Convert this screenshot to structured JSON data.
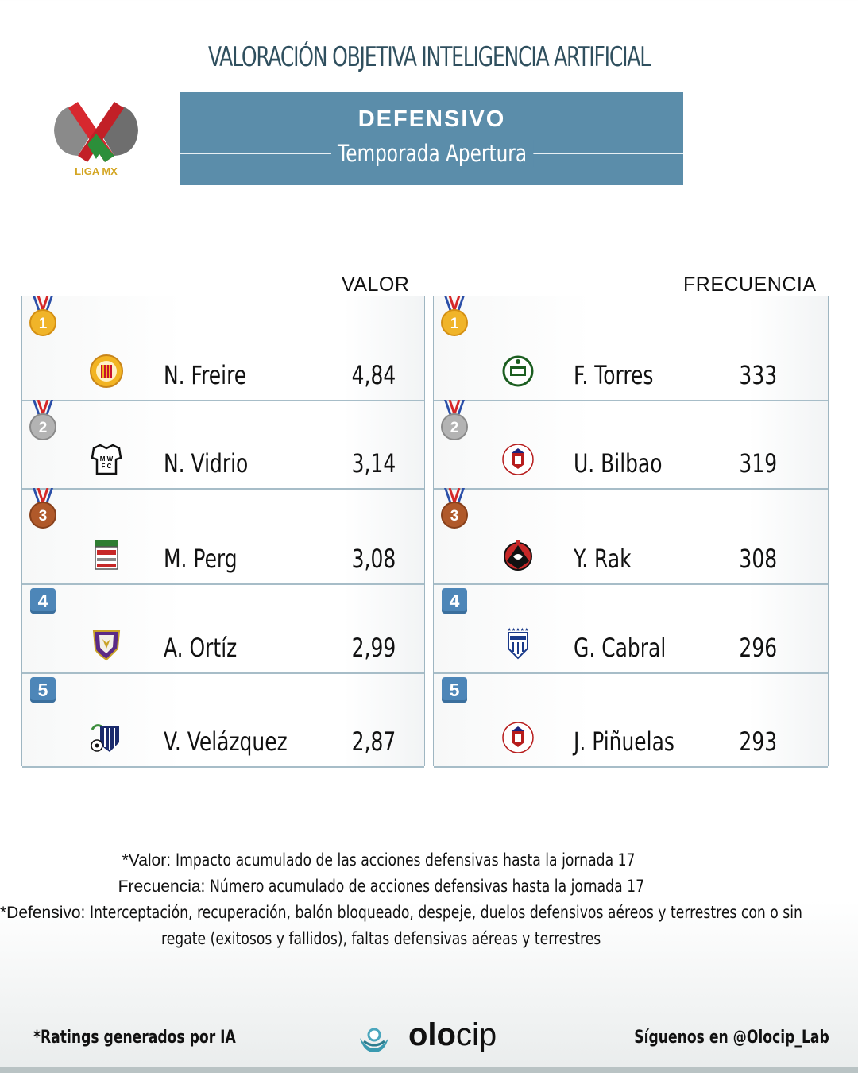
{
  "header": {
    "title": "VALORACIÓN OBJETIVA INTELIGENCIA ARTIFICIAL",
    "category": "DEFENSIVO",
    "season": "Temporada Apertura",
    "league_logo_text": "LIGA MX"
  },
  "columns": {
    "left_label": "VALOR",
    "right_label": "FRECUENCIA"
  },
  "rankings_valor": [
    {
      "rank": "1",
      "player": "N. Freire",
      "value": "4,84",
      "badge": "gold-medal",
      "crest": "club-crest-yellow"
    },
    {
      "rank": "2",
      "player": "N. Vidrio",
      "value": "3,14",
      "badge": "silver-medal",
      "crest": "club-crest-mwfc"
    },
    {
      "rank": "3",
      "player": "M. Perg",
      "value": "3,08",
      "badge": "bronze-medal",
      "crest": "club-crest-maldonado"
    },
    {
      "rank": "4",
      "player": "A. Ortíz",
      "value": "2,99",
      "badge": "rank-box",
      "crest": "club-crest-purple-shield"
    },
    {
      "rank": "5",
      "player": "V. Velázquez",
      "value": "2,87",
      "badge": "rank-box",
      "crest": "club-crest-blue-stripes"
    }
  ],
  "rankings_frecuencia": [
    {
      "rank": "1",
      "player": "F. Torres",
      "value": "333",
      "badge": "gold-medal",
      "crest": "club-crest-santos"
    },
    {
      "rank": "2",
      "player": "U. Bilbao",
      "value": "319",
      "badge": "silver-medal",
      "crest": "club-crest-san-luis"
    },
    {
      "rank": "3",
      "player": "Y. Rak",
      "value": "308",
      "badge": "bronze-medal",
      "crest": "club-crest-tijuana"
    },
    {
      "rank": "4",
      "player": "G. Cabral",
      "value": "296",
      "badge": "rank-box",
      "crest": "club-crest-pachuca"
    },
    {
      "rank": "5",
      "player": "J. Piñuelas",
      "value": "293",
      "badge": "rank-box",
      "crest": "club-crest-san-luis"
    }
  ],
  "notes": {
    "valor_key": "*Valor:",
    "valor_text": "Impacto acumulado de las acciones defensivas hasta la jornada 17",
    "freq_key": "Frecuencia:",
    "freq_text": "Número acumulado de acciones defensivas hasta la jornada 17",
    "def_key": "*Defensivo:",
    "def_text_1": "Interceptación, recuperación, balón bloqueado, despeje, duelos defensivos aéreos y terrestres con o sin",
    "def_text_2": "regate (exitosos y fallidos), faltas defensivas aéreas y terrestres"
  },
  "footer": {
    "left": "*Ratings generados por IA",
    "brand_bold": "olo",
    "brand_light": "cip",
    "right": "Síguenos en @Olocip_Lab"
  },
  "colors": {
    "banner": "#5b8daa",
    "title": "#2f4f5e",
    "rank_box": "#4d86b8",
    "gold": "#e8a91c",
    "silver": "#9a9a9a",
    "bronze": "#a0522d"
  }
}
